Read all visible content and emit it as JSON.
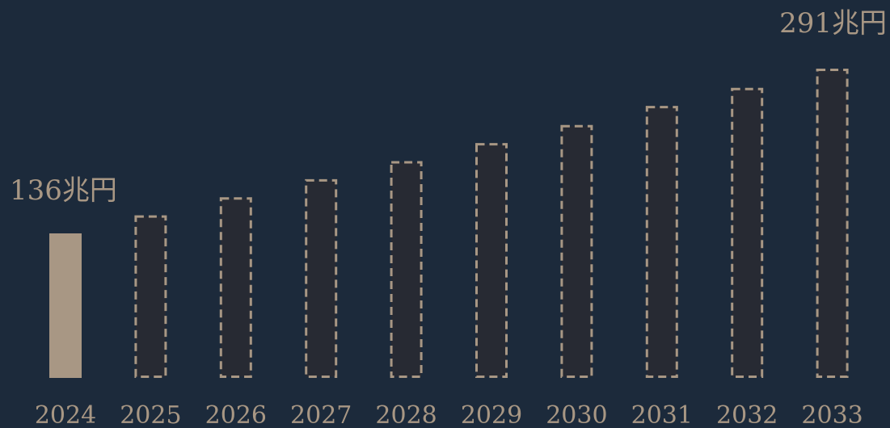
{
  "chart_data": {
    "type": "bar",
    "categories": [
      "2024",
      "2025",
      "2026",
      "2027",
      "2028",
      "2029",
      "2030",
      "2031",
      "2032",
      "2033"
    ],
    "values": [
      136,
      153,
      170,
      187,
      204,
      221,
      238,
      256,
      273,
      291
    ],
    "series_style": [
      "actual",
      "forecast",
      "forecast",
      "forecast",
      "forecast",
      "forecast",
      "forecast",
      "forecast",
      "forecast",
      "forecast"
    ],
    "annotations": [
      {
        "category": "2024",
        "text": "136兆円"
      },
      {
        "category": "2033",
        "text": "291兆円"
      }
    ],
    "title": "",
    "xlabel": "",
    "ylabel": "",
    "ylim": [
      0,
      291
    ],
    "grid": false,
    "legend": "none",
    "colors": {
      "background": "#1c2a3b",
      "actual_fill": "#a89784",
      "forecast_fill": "#272a33",
      "forecast_stroke": "#a89784",
      "text": "#a89784"
    }
  }
}
